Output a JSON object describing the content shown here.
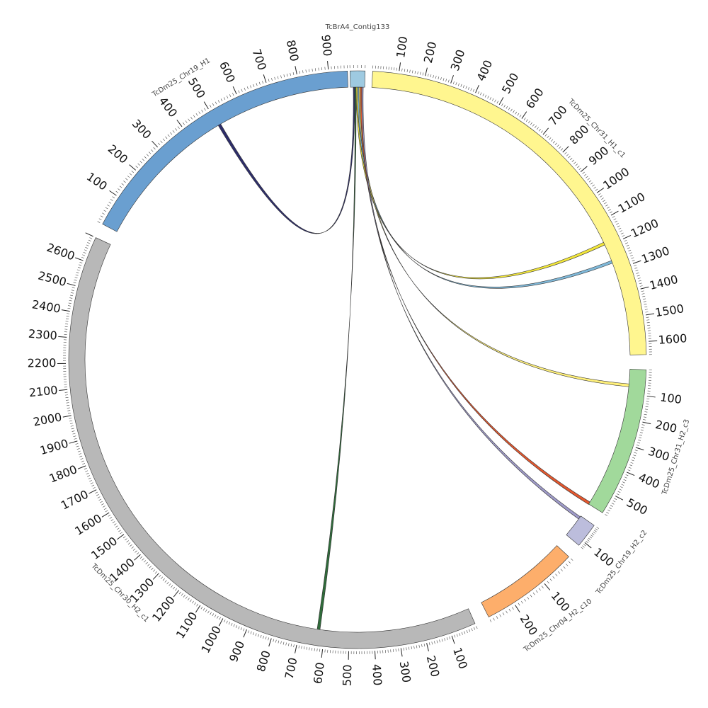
{
  "chart_data": {
    "type": "circos",
    "segments": [
      {
        "name": "TcBrA4_Contig133",
        "color": "#9ecae1",
        "start_deg": -1.5,
        "end_deg": 1.5,
        "length": 40,
        "ticks": []
      },
      {
        "name": "TcDm25_Chr31_H1_c1",
        "color": "#fff68f",
        "start_deg": 3,
        "end_deg": 89,
        "length": 1650,
        "ticks": [
          "100",
          "200",
          "300",
          "400",
          "500",
          "600",
          "700",
          "800",
          "900",
          "1000",
          "1100",
          "1200",
          "1300",
          "1400",
          "1500",
          "1600"
        ]
      },
      {
        "name": "TcDm25_Chr31_H2_c3",
        "color": "#a1d99b",
        "start_deg": 92,
        "end_deg": 122,
        "length": 580,
        "ticks": [
          "100",
          "200",
          "300",
          "400",
          "500"
        ]
      },
      {
        "name": "TcDm25_Chr19_H2_c2",
        "color": "#bcbddc",
        "start_deg": 125,
        "end_deg": 130,
        "length": 130,
        "ticks": [
          "100"
        ]
      },
      {
        "name": "TcDm25_Chr04_H2_c10",
        "color": "#fdae6b",
        "start_deg": 133,
        "end_deg": 153,
        "length": 280,
        "ticks": [
          "100",
          "200"
        ]
      },
      {
        "name": "TcDm25_Chr30_H2_c1",
        "color": "#b8b8b8",
        "start_deg": 156,
        "end_deg": 295,
        "length": 2700,
        "ticks": [
          "100",
          "200",
          "300",
          "400",
          "500",
          "600",
          "700",
          "800",
          "900",
          "1000",
          "1100",
          "1200",
          "1300",
          "1400",
          "1500",
          "1600",
          "1700",
          "1800",
          "1900",
          "2000",
          "2100",
          "2200",
          "2300",
          "2400",
          "2500",
          "2600"
        ]
      },
      {
        "name": "TcDm25_Chr19_H1",
        "color": "#6a9fd0",
        "start_deg": 298,
        "end_deg": 358,
        "length": 960,
        "ticks": [
          "100",
          "200",
          "300",
          "400",
          "500",
          "600",
          "700",
          "800",
          "900"
        ]
      }
    ],
    "links": [
      {
        "from": "TcBrA4_Contig133",
        "to": "TcDm25_Chr19_H1",
        "to_pos": 500,
        "color": "#2d2d6b"
      },
      {
        "from": "TcBrA4_Contig133",
        "to": "TcDm25_Chr30_H2_c1",
        "to_pos": 620,
        "color": "#2f6b3a"
      },
      {
        "from": "TcBrA4_Contig133",
        "to": "TcDm25_Chr31_H1_c1",
        "to_pos": 1180,
        "color": "#f2e63a"
      },
      {
        "from": "TcBrA4_Contig133",
        "to": "TcDm25_Chr31_H1_c1",
        "to_pos": 1260,
        "color": "#7fb8d8"
      },
      {
        "from": "TcBrA4_Contig133",
        "to": "TcDm25_Chr31_H2_c3",
        "to_pos": 60,
        "color": "#fff07a"
      },
      {
        "from": "TcBrA4_Contig133",
        "to": "TcDm25_Chr31_H2_c3",
        "to_pos": 570,
        "color": "#e4572e"
      },
      {
        "from": "TcBrA4_Contig133",
        "to": "TcDm25_Chr19_H2_c2",
        "to_pos": 5,
        "color": "#9e9ac8"
      }
    ]
  }
}
